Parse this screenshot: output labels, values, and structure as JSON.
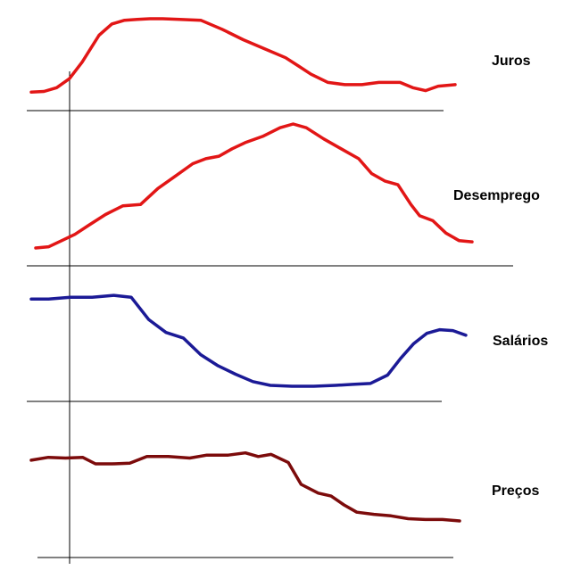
{
  "chart_data": {
    "type": "line",
    "title": "",
    "xlabel": "",
    "ylabel": "",
    "grid": false,
    "legend": "none",
    "series": [
      {
        "name": "Juros",
        "color": "#e21616",
        "x": [
          0,
          3,
          6,
          9,
          12,
          14,
          16,
          19,
          22,
          25,
          28,
          31,
          35,
          40,
          45,
          50,
          55,
          60,
          63,
          66,
          70,
          74,
          78,
          82,
          87,
          90,
          93,
          96,
          100
        ],
        "y": [
          0.02,
          0.03,
          0.08,
          0.2,
          0.42,
          0.6,
          0.78,
          0.93,
          0.98,
          0.99,
          1.0,
          1.0,
          0.99,
          0.98,
          0.86,
          0.72,
          0.6,
          0.48,
          0.37,
          0.26,
          0.15,
          0.12,
          0.12,
          0.15,
          0.15,
          0.08,
          0.04,
          0.1,
          0.12
        ]
      },
      {
        "name": "Desemprego",
        "color": "#e21616",
        "x": [
          0,
          3,
          6,
          9,
          12,
          16,
          20,
          24,
          28,
          32,
          36,
          39,
          42,
          45,
          48,
          52,
          56,
          59,
          62,
          66,
          70,
          74,
          77,
          80,
          83,
          86,
          88,
          91,
          94,
          97,
          100
        ],
        "y": [
          0.0,
          0.01,
          0.06,
          0.11,
          0.18,
          0.27,
          0.34,
          0.35,
          0.48,
          0.58,
          0.68,
          0.72,
          0.74,
          0.8,
          0.85,
          0.9,
          0.97,
          1.0,
          0.97,
          0.88,
          0.8,
          0.72,
          0.6,
          0.54,
          0.51,
          0.35,
          0.26,
          0.22,
          0.12,
          0.06,
          0.05
        ]
      },
      {
        "name": "Salários",
        "color": "#1b1a96",
        "x": [
          0,
          4,
          9,
          14,
          19,
          23,
          27,
          31,
          35,
          39,
          43,
          47,
          51,
          55,
          60,
          65,
          70,
          74,
          78,
          82,
          85,
          88,
          91,
          94,
          97,
          100
        ],
        "y": [
          0.94,
          0.94,
          0.96,
          0.96,
          0.98,
          0.96,
          0.72,
          0.58,
          0.52,
          0.34,
          0.22,
          0.13,
          0.05,
          0.01,
          0.0,
          0.0,
          0.01,
          0.02,
          0.03,
          0.12,
          0.3,
          0.46,
          0.57,
          0.61,
          0.6,
          0.55
        ]
      },
      {
        "name": "Preços",
        "color": "#7c0b0b",
        "x": [
          0,
          4,
          8,
          12,
          15,
          19,
          23,
          27,
          32,
          37,
          41,
          46,
          50,
          53,
          56,
          60,
          63,
          67,
          70,
          73,
          76,
          80,
          84,
          88,
          92,
          96,
          100
        ],
        "y": [
          0.83,
          0.87,
          0.86,
          0.87,
          0.78,
          0.78,
          0.79,
          0.88,
          0.88,
          0.86,
          0.9,
          0.9,
          0.93,
          0.88,
          0.91,
          0.8,
          0.5,
          0.38,
          0.34,
          0.22,
          0.12,
          0.09,
          0.07,
          0.03,
          0.02,
          0.02,
          0.0
        ]
      }
    ]
  }
}
